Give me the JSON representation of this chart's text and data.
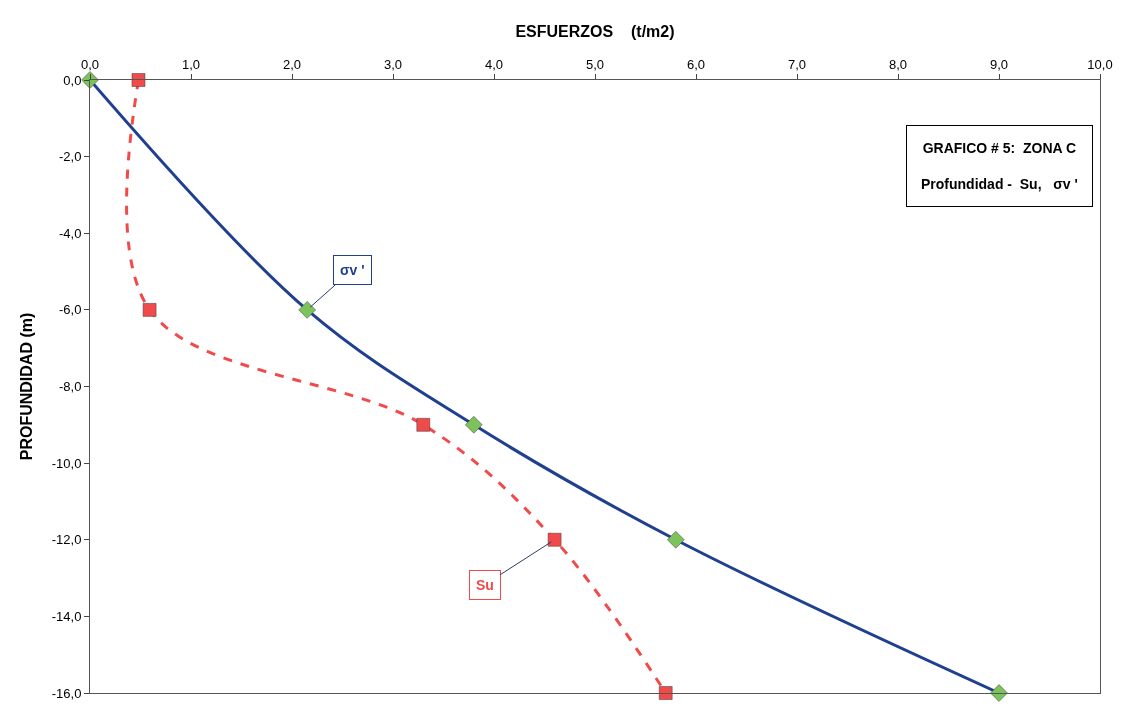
{
  "chart_data": {
    "type": "line",
    "title": "GRAFICO # 5:  ZONA C",
    "subtitle": "Profundidad -  Su,   σv '",
    "xlabel": "ESFUERZOS    (t/m2)",
    "ylabel": "PROFUNDIDAD (m)",
    "series": [
      {
        "name": "σv '",
        "color": "#1f3f8f",
        "x": [
          0,
          2.15,
          3.8,
          5.8,
          9.0
        ],
        "values": [
          0,
          -6,
          -9,
          -12,
          -16
        ],
        "marker": "diamond",
        "colors": [
          "#7dc35b",
          "#7dc35b",
          "#7dc35b",
          "#7dc35b",
          "#7dc35b"
        ],
        "line_style": "solid"
      },
      {
        "name": "Su",
        "color": "#f04a4a",
        "x": [
          0.48,
          0.59,
          3.3,
          4.6,
          5.7
        ],
        "values": [
          0,
          -6,
          -9,
          -12,
          -16
        ],
        "marker": "square",
        "colors": [
          "#f04a4a",
          "#f04a4a",
          "#f04a4a",
          "#f04a4a",
          "#f04a4a"
        ],
        "line_style": "dashed"
      }
    ],
    "xlim": [
      0,
      10
    ],
    "xticks": [
      {
        "value": 0,
        "label": "0,0"
      },
      {
        "value": 1,
        "label": "1,0"
      },
      {
        "value": 2,
        "label": "2,0"
      },
      {
        "value": 3,
        "label": "3,0"
      },
      {
        "value": 4,
        "label": "4,0"
      },
      {
        "value": 5,
        "label": "5,0"
      },
      {
        "value": 6,
        "label": "6,0"
      },
      {
        "value": 7,
        "label": "7,0"
      },
      {
        "value": 8,
        "label": "8,0"
      },
      {
        "value": 9,
        "label": "9,0"
      },
      {
        "value": 10,
        "label": "10,0"
      }
    ],
    "ylim": [
      -16,
      0
    ],
    "yticks": [
      {
        "value": 0,
        "label": "0,0"
      },
      {
        "value": -2,
        "label": "-2,0"
      },
      {
        "value": -4,
        "label": "-4,0"
      },
      {
        "value": -6,
        "label": "-6,0"
      },
      {
        "value": -8,
        "label": "-8,0"
      },
      {
        "value": -10,
        "label": "-10,0"
      },
      {
        "value": -12,
        "label": "-12,0"
      },
      {
        "value": -14,
        "label": "-14,0"
      },
      {
        "value": -16,
        "label": "-16,0"
      }
    ],
    "legend": false
  }
}
